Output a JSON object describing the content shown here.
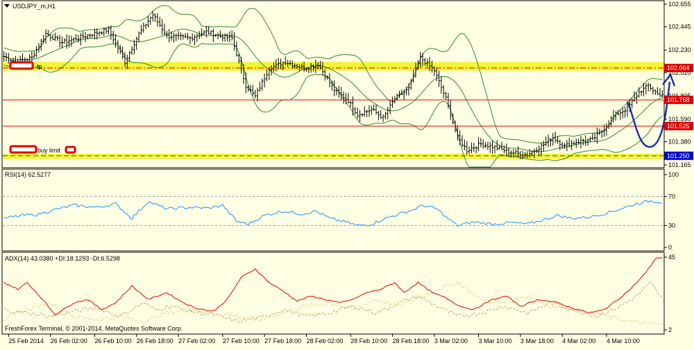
{
  "chart_data": {
    "type": "candlestick",
    "symbol_title": "USDJPY_m,H1",
    "title_arrow_icon": "triangle-down-icon",
    "colors": {
      "background": "#ffffe4",
      "price_line": "#000000",
      "bollinger": "#2e8b2e",
      "support_resistance": "#e00000",
      "zone_highlight": "#f0f000",
      "rsi_line": "#1e90ff",
      "adx_line": "#e00000",
      "plus_di": "#b8a060",
      "minus_di": "#d4c070",
      "level_label_bg": "#e00000",
      "entry_label_bg": "#0000cd",
      "forecast_arrow": "#1a2fb0"
    },
    "main": {
      "ylim": [
        101.165,
        102.655
      ],
      "y_ticks": [
        "102.655",
        "102.445",
        "102.230",
        "102.020",
        "101.805",
        "101.590",
        "101.380",
        "101.165"
      ],
      "levels": [
        {
          "value": 102.064,
          "label": "102.064",
          "style": "dashdot"
        },
        {
          "value": 101.768,
          "label": "101.768",
          "style": "solid"
        },
        {
          "value": 101.525,
          "label": "101.525",
          "style": "solid"
        },
        {
          "value": 101.25,
          "label": "101.250",
          "style": "dashed"
        }
      ],
      "zones": [
        {
          "from": 102.04,
          "to": 102.12
        },
        {
          "from": 101.22,
          "to": 101.27
        }
      ],
      "annotations": [
        {
          "text": "tp",
          "level": 102.064
        },
        {
          "text": "buy limit",
          "level": 101.29
        }
      ],
      "close_anchors": [
        [
          0,
          102.17
        ],
        [
          5,
          102.12
        ],
        [
          12,
          102.16
        ],
        [
          18,
          102.38
        ],
        [
          25,
          102.3
        ],
        [
          35,
          102.36
        ],
        [
          45,
          102.42
        ],
        [
          52,
          102.12
        ],
        [
          58,
          102.38
        ],
        [
          64,
          102.56
        ],
        [
          70,
          102.36
        ],
        [
          80,
          102.34
        ],
        [
          87,
          102.4
        ],
        [
          93,
          102.36
        ],
        [
          98,
          102.34
        ],
        [
          104,
          101.9
        ],
        [
          108,
          101.8
        ],
        [
          114,
          102.06
        ],
        [
          121,
          102.12
        ],
        [
          129,
          102.06
        ],
        [
          135,
          102.1
        ],
        [
          142,
          101.86
        ],
        [
          148,
          101.76
        ],
        [
          152,
          101.63
        ],
        [
          158,
          101.68
        ],
        [
          163,
          101.6
        ],
        [
          168,
          101.78
        ],
        [
          174,
          101.87
        ],
        [
          179,
          102.16
        ],
        [
          185,
          102.04
        ],
        [
          190,
          101.78
        ],
        [
          195,
          101.42
        ],
        [
          199,
          101.3
        ],
        [
          205,
          101.36
        ],
        [
          211,
          101.33
        ],
        [
          218,
          101.28
        ],
        [
          225,
          101.26
        ],
        [
          231,
          101.34
        ],
        [
          236,
          101.42
        ],
        [
          241,
          101.34
        ],
        [
          246,
          101.38
        ],
        [
          253,
          101.4
        ],
        [
          258,
          101.5
        ],
        [
          262,
          101.62
        ],
        [
          268,
          101.69
        ],
        [
          273,
          101.84
        ],
        [
          277,
          101.9
        ],
        [
          281,
          101.82
        ]
      ]
    },
    "rsi": {
      "label": "RSI(14) 62.5277",
      "ylim": [
        0,
        100
      ],
      "y_ticks": [
        "100",
        "70",
        "30",
        "0"
      ],
      "levels": [
        70,
        30
      ],
      "anchors": [
        [
          0,
          40
        ],
        [
          8,
          44
        ],
        [
          14,
          45
        ],
        [
          22,
          52
        ],
        [
          30,
          58
        ],
        [
          40,
          55
        ],
        [
          48,
          60
        ],
        [
          55,
          40
        ],
        [
          62,
          63
        ],
        [
          70,
          53
        ],
        [
          80,
          55
        ],
        [
          88,
          54
        ],
        [
          94,
          58
        ],
        [
          100,
          36
        ],
        [
          105,
          32
        ],
        [
          112,
          44
        ],
        [
          120,
          50
        ],
        [
          128,
          46
        ],
        [
          134,
          50
        ],
        [
          140,
          40
        ],
        [
          148,
          34
        ],
        [
          152,
          30
        ],
        [
          158,
          32
        ],
        [
          164,
          40
        ],
        [
          170,
          46
        ],
        [
          176,
          52
        ],
        [
          180,
          58
        ],
        [
          186,
          53
        ],
        [
          190,
          42
        ],
        [
          195,
          30
        ],
        [
          202,
          35
        ],
        [
          210,
          32
        ],
        [
          218,
          34
        ],
        [
          225,
          32
        ],
        [
          232,
          38
        ],
        [
          238,
          44
        ],
        [
          244,
          40
        ],
        [
          252,
          42
        ],
        [
          260,
          48
        ],
        [
          266,
          54
        ],
        [
          272,
          60
        ],
        [
          278,
          64
        ],
        [
          283,
          62
        ]
      ]
    },
    "adx": {
      "label": "ADX(14) 43.0380 +DI:18.1293 -DI:6.5298",
      "ylim": [
        2,
        45
      ],
      "y_ticks": [
        "45",
        "2"
      ],
      "adx_anchors": [
        [
          0,
          30
        ],
        [
          6,
          26
        ],
        [
          10,
          30
        ],
        [
          16,
          21
        ],
        [
          22,
          11
        ],
        [
          30,
          18
        ],
        [
          36,
          20
        ],
        [
          42,
          14
        ],
        [
          48,
          18
        ],
        [
          55,
          28
        ],
        [
          62,
          20
        ],
        [
          70,
          24
        ],
        [
          76,
          19
        ],
        [
          82,
          15
        ],
        [
          90,
          13
        ],
        [
          96,
          20
        ],
        [
          102,
          33
        ],
        [
          108,
          38
        ],
        [
          114,
          30
        ],
        [
          120,
          25
        ],
        [
          126,
          19
        ],
        [
          132,
          22
        ],
        [
          138,
          20
        ],
        [
          144,
          18
        ],
        [
          150,
          20
        ],
        [
          156,
          24
        ],
        [
          162,
          26
        ],
        [
          168,
          30
        ],
        [
          172,
          24
        ],
        [
          178,
          30
        ],
        [
          184,
          24
        ],
        [
          190,
          21
        ],
        [
          196,
          16
        ],
        [
          202,
          14
        ],
        [
          210,
          20
        ],
        [
          216,
          22
        ],
        [
          222,
          16
        ],
        [
          230,
          20
        ],
        [
          238,
          18
        ],
        [
          244,
          15
        ],
        [
          252,
          12
        ],
        [
          258,
          14
        ],
        [
          264,
          20
        ],
        [
          270,
          27
        ],
        [
          276,
          36
        ],
        [
          280,
          44
        ],
        [
          283,
          45
        ]
      ],
      "plus_di_anchors": [
        [
          0,
          14
        ],
        [
          10,
          12
        ],
        [
          20,
          10
        ],
        [
          30,
          13
        ],
        [
          40,
          15
        ],
        [
          50,
          10
        ],
        [
          60,
          18
        ],
        [
          65,
          14
        ],
        [
          72,
          16
        ],
        [
          80,
          13
        ],
        [
          90,
          11
        ],
        [
          100,
          7
        ],
        [
          110,
          9
        ],
        [
          120,
          14
        ],
        [
          130,
          10
        ],
        [
          140,
          12
        ],
        [
          150,
          16
        ],
        [
          160,
          12
        ],
        [
          170,
          18
        ],
        [
          178,
          22
        ],
        [
          186,
          16
        ],
        [
          195,
          10
        ],
        [
          205,
          12
        ],
        [
          215,
          16
        ],
        [
          225,
          12
        ],
        [
          235,
          18
        ],
        [
          245,
          14
        ],
        [
          255,
          10
        ],
        [
          265,
          16
        ],
        [
          272,
          22
        ],
        [
          278,
          30
        ],
        [
          283,
          20
        ]
      ],
      "minus_di_anchors": [
        [
          0,
          8
        ],
        [
          10,
          14
        ],
        [
          20,
          18
        ],
        [
          30,
          10
        ],
        [
          40,
          8
        ],
        [
          50,
          10
        ],
        [
          60,
          7
        ],
        [
          70,
          12
        ],
        [
          80,
          14
        ],
        [
          90,
          12
        ],
        [
          100,
          10
        ],
        [
          110,
          8
        ],
        [
          120,
          12
        ],
        [
          130,
          16
        ],
        [
          140,
          18
        ],
        [
          150,
          14
        ],
        [
          160,
          20
        ],
        [
          170,
          16
        ],
        [
          180,
          22
        ],
        [
          186,
          26
        ],
        [
          195,
          30
        ],
        [
          205,
          20
        ],
        [
          215,
          18
        ],
        [
          225,
          22
        ],
        [
          235,
          16
        ],
        [
          245,
          14
        ],
        [
          255,
          12
        ],
        [
          265,
          8
        ],
        [
          275,
          6
        ],
        [
          283,
          5
        ]
      ]
    },
    "x_tick_labels": [
      "25 Feb 2014",
      "26 Feb 02:00",
      "26 Feb 10:00",
      "26 Feb 18:00",
      "27 Feb 02:00",
      "27 Feb 10:00",
      "27 Feb 18:00",
      "28 Feb 02:00",
      "28 Feb 10:00",
      "28 Feb 18:00",
      "3 Mar 02:00",
      "3 Mar 10:00",
      "3 Mar 18:00",
      "4 Mar 02:00",
      "4 Mar 10:00"
    ],
    "x_tick_positions": [
      2,
      20,
      39,
      57,
      75,
      94,
      112,
      130,
      149,
      167,
      185,
      204,
      222,
      240,
      259
    ],
    "bar_count": 284,
    "copyright": "FreshForex Terminal, © 2001-2014, MetaQuotes Software Corp."
  }
}
